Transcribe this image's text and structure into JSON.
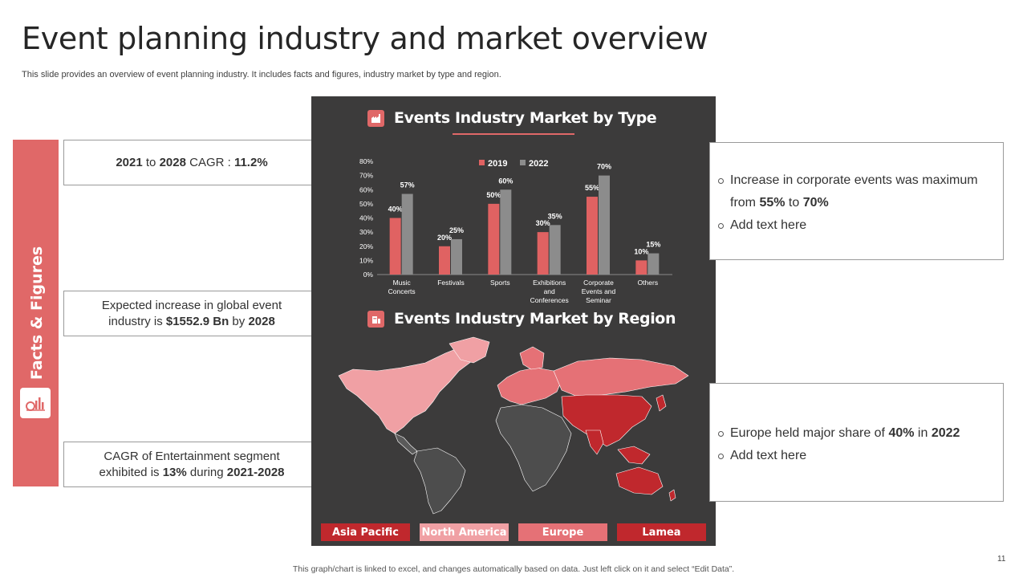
{
  "title": "Event planning industry and market overview",
  "subtitle": "This slide provides an overview of event planning industry. It includes facts and figures, industry market by type and region.",
  "side_label": "Facts & Figures",
  "facts": {
    "f1": {
      "a": "2021",
      "b": " to ",
      "c": "2028",
      "d": " CAGR : ",
      "e": "11.2%"
    },
    "f2": {
      "line1": "Expected increase in global event",
      "a": "industry is ",
      "b": "$1552.9 Bn",
      "c": " by ",
      "d": "2028"
    },
    "f3": {
      "line1": "CAGR of Entertainment  segment",
      "a": "exhibited is ",
      "b": "13%",
      "c": " during ",
      "d": "2021-2028"
    }
  },
  "panel": {
    "type_heading": "Events Industry Market by Type",
    "region_heading": "Events Industry Market by Region",
    "regions": [
      "Asia Pacific",
      "North America",
      "Europe",
      "Lamea"
    ]
  },
  "notes": {
    "n1": {
      "a": "Increase  in corporate events  was maximum",
      "b": "from ",
      "c": "55%",
      "d": " to ",
      "e": "70%",
      "add": "Add text here"
    },
    "n2": {
      "a": "Europe held major share of ",
      "b": "40%",
      "c": " in ",
      "d": "2022",
      "add": "Add text here"
    }
  },
  "page_number": "11",
  "footer": "This graph/chart is linked to excel,  and changes automatically based on data. Just left click on it and select “Edit Data”.",
  "colors": {
    "accent": "#e06868",
    "panel": "#3c3b3b",
    "series_2019": "#e06262",
    "series_2022": "#8c8c8c",
    "region_asia": "#c0282d",
    "region_na": "#f0a0a4",
    "region_europe": "#e57176",
    "region_lamea": "#c0282d"
  },
  "chart_data": {
    "type": "bar",
    "title": "Events Industry Market by Type",
    "categories": [
      [
        "Music",
        "Concerts"
      ],
      [
        "Festivals"
      ],
      [
        "Sports"
      ],
      [
        "Exhibitions",
        "and",
        "Conferences"
      ],
      [
        "Corporate",
        "Events and",
        "Seminar"
      ],
      [
        "Others"
      ]
    ],
    "series": [
      {
        "name": "2019",
        "values": [
          40,
          20,
          50,
          30,
          55,
          10
        ]
      },
      {
        "name": "2022",
        "values": [
          57,
          25,
          60,
          35,
          70,
          15
        ]
      }
    ],
    "ylim": [
      0,
      80
    ],
    "yticks": [
      0,
      10,
      20,
      30,
      40,
      50,
      60,
      70,
      80
    ],
    "ytick_suffix": "%",
    "legend_position": "top-center",
    "grid": false
  }
}
